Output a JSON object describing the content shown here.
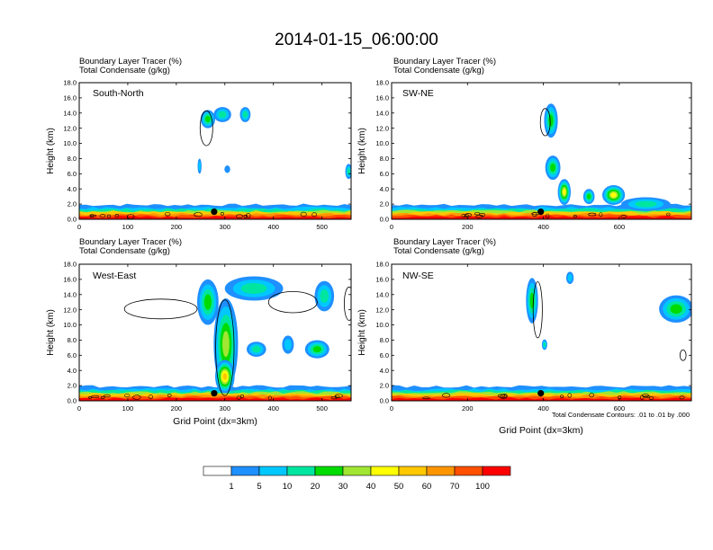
{
  "chart_data": {
    "type": "heatmap",
    "title": "2014-01-15_06:00:00",
    "footnote": "Total Condensate Contours: .01 to .01 by .000",
    "xlabel": "Grid Point (dx=3km)",
    "ylabel": "Height (km)",
    "ylim": [
      0,
      18
    ],
    "y_ticks": [
      "0.0",
      "2.0",
      "4.0",
      "6.0",
      "8.0",
      "10.0",
      "12.0",
      "14.0",
      "16.0",
      "18.0"
    ],
    "variable_labels": [
      "Boundary Layer Tracer   (%)",
      "Total Condensate   (g/kg)"
    ],
    "colorbar": {
      "labels": [
        "1",
        "5",
        "10",
        "20",
        "30",
        "40",
        "50",
        "60",
        "70",
        "100"
      ],
      "colors": [
        "#ffffff",
        "#1e90ff",
        "#00c8ff",
        "#00e6a0",
        "#00dc00",
        "#a0e632",
        "#ffff00",
        "#ffc800",
        "#ff9600",
        "#ff5000",
        "#ff0000"
      ]
    },
    "panels": [
      {
        "name": "South-North",
        "xlim": [
          0,
          560
        ],
        "x_ticks": [
          "0",
          "100",
          "200",
          "300",
          "400",
          "500"
        ],
        "x_tick_values": [
          0,
          100,
          200,
          300,
          400,
          500
        ],
        "marker": [
          278,
          1.0
        ],
        "blobs": [
          {
            "x": 265,
            "y": 13.2,
            "w": 30,
            "h": 2.4,
            "level": 4
          },
          {
            "x": 295,
            "y": 13.8,
            "w": 36,
            "h": 2.0,
            "level": 3
          },
          {
            "x": 342,
            "y": 13.8,
            "w": 22,
            "h": 2.0,
            "level": 3
          },
          {
            "x": 248,
            "y": 7.0,
            "w": 8,
            "h": 2.0,
            "level": 2
          },
          {
            "x": 305,
            "y": 6.6,
            "w": 12,
            "h": 1.0,
            "level": 1
          },
          {
            "x": 555,
            "y": 6.3,
            "w": 14,
            "h": 2.0,
            "level": 3
          }
        ],
        "contours": [
          {
            "x": 262,
            "y": 12.0,
            "w": 26,
            "h": 4.6
          }
        ]
      },
      {
        "name": "SW-NE",
        "xlim": [
          0,
          790
        ],
        "x_ticks": [
          "0",
          "200",
          "400",
          "600"
        ],
        "x_tick_values": [
          0,
          200,
          400,
          600
        ],
        "marker": [
          393,
          1.0
        ],
        "blobs": [
          {
            "x": 420,
            "y": 13.0,
            "w": 36,
            "h": 4.5,
            "level": 4
          },
          {
            "x": 425,
            "y": 6.8,
            "w": 40,
            "h": 3.2,
            "level": 4
          },
          {
            "x": 455,
            "y": 3.6,
            "w": 34,
            "h": 3.4,
            "level": 6
          },
          {
            "x": 520,
            "y": 3.0,
            "w": 30,
            "h": 2.0,
            "level": 4
          },
          {
            "x": 585,
            "y": 3.2,
            "w": 60,
            "h": 2.6,
            "level": 6
          },
          {
            "x": 670,
            "y": 2.0,
            "w": 130,
            "h": 1.8,
            "level": 3
          }
        ],
        "contours": [
          {
            "x": 405,
            "y": 12.8,
            "w": 26,
            "h": 3.6
          }
        ]
      },
      {
        "name": "West-East",
        "xlim": [
          0,
          560
        ],
        "x_ticks": [
          "0",
          "100",
          "200",
          "300",
          "400",
          "500"
        ],
        "x_tick_values": [
          0,
          100,
          200,
          300,
          400,
          500
        ],
        "marker": [
          278,
          1.0
        ],
        "blobs": [
          {
            "x": 265,
            "y": 13.0,
            "w": 44,
            "h": 6.0,
            "level": 4
          },
          {
            "x": 302,
            "y": 7.5,
            "w": 50,
            "h": 12.0,
            "level": 5
          },
          {
            "x": 300,
            "y": 3.2,
            "w": 40,
            "h": 4.4,
            "level": 7
          },
          {
            "x": 360,
            "y": 14.8,
            "w": 120,
            "h": 3.2,
            "level": 3
          },
          {
            "x": 505,
            "y": 13.8,
            "w": 40,
            "h": 4.0,
            "level": 3
          },
          {
            "x": 365,
            "y": 6.8,
            "w": 40,
            "h": 2.0,
            "level": 3
          },
          {
            "x": 430,
            "y": 7.4,
            "w": 24,
            "h": 2.4,
            "level": 2
          },
          {
            "x": 490,
            "y": 6.8,
            "w": 50,
            "h": 2.4,
            "level": 4
          }
        ],
        "contours": [
          {
            "x": 168,
            "y": 12.1,
            "w": 150,
            "h": 2.6
          },
          {
            "x": 300,
            "y": 7.0,
            "w": 38,
            "h": 12.6
          },
          {
            "x": 440,
            "y": 13.0,
            "w": 100,
            "h": 2.8
          },
          {
            "x": 556,
            "y": 12.8,
            "w": 20,
            "h": 4.4
          }
        ]
      },
      {
        "name": "NW-SE",
        "xlim": [
          0,
          790
        ],
        "x_ticks": [
          "0",
          "200",
          "400",
          "600"
        ],
        "x_tick_values": [
          0,
          200,
          400,
          600
        ],
        "marker": [
          393,
          1.0
        ],
        "blobs": [
          {
            "x": 370,
            "y": 13.2,
            "w": 32,
            "h": 6.0,
            "level": 4
          },
          {
            "x": 403,
            "y": 7.4,
            "w": 14,
            "h": 1.4,
            "level": 3
          },
          {
            "x": 470,
            "y": 16.2,
            "w": 20,
            "h": 1.6,
            "level": 2
          },
          {
            "x": 750,
            "y": 12.1,
            "w": 90,
            "h": 3.6,
            "level": 4
          }
        ],
        "contours": [
          {
            "x": 385,
            "y": 12.0,
            "w": 24,
            "h": 7.4
          },
          {
            "x": 768,
            "y": 6.0,
            "w": 16,
            "h": 1.4
          }
        ]
      }
    ]
  }
}
